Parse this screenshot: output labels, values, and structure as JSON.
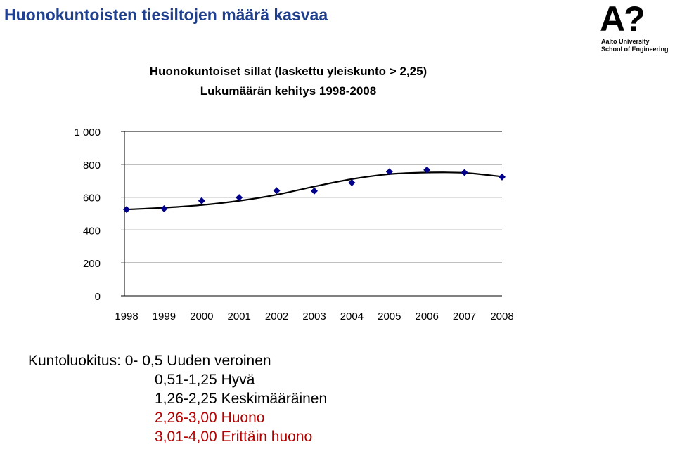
{
  "slide": {
    "title": "Huonokuntoisten tiesiltojen määrä kasvaa"
  },
  "logo": {
    "mark": "A?",
    "line1": "Aalto University",
    "line2": "School of Engineering"
  },
  "chart_data": {
    "type": "scatter",
    "title": "Huonokuntoiset sillat (laskettu yleiskunto > 2,25)",
    "subtitle": "Lukumäärän kehitys 1998-2008",
    "xlabel": "",
    "ylabel": "",
    "ylim": [
      0,
      1000
    ],
    "yticks": [
      0,
      200,
      400,
      600,
      800,
      1000
    ],
    "ytick_labels": [
      "0",
      "200",
      "400",
      "600",
      "800",
      "1 000"
    ],
    "x": [
      "1998",
      "1999",
      "2000",
      "2001",
      "2002",
      "2003",
      "2004",
      "2005",
      "2006",
      "2007",
      "2008"
    ],
    "grid": "horizontal",
    "series": [
      {
        "marker": "diamond",
        "color": "#00008b",
        "values": [
          525,
          530,
          578,
          598,
          640,
          638,
          688,
          755,
          766,
          750,
          723
        ]
      }
    ],
    "trendline": {
      "color": "#000000",
      "values": [
        525,
        536,
        552,
        578,
        615,
        665,
        710,
        740,
        750,
        748,
        725
      ]
    }
  },
  "legend": {
    "rows": [
      {
        "text": "Kuntoluokitus: 0- 0,5 Uuden veroinen"
      },
      {
        "text": "0,51-1,25 Hyvä"
      },
      {
        "text": "1,26-2,25 Keskimääräinen"
      },
      {
        "text": "2,26-3,00 Huono"
      },
      {
        "text": "3,01-4,00 Erittäin huono"
      }
    ]
  }
}
